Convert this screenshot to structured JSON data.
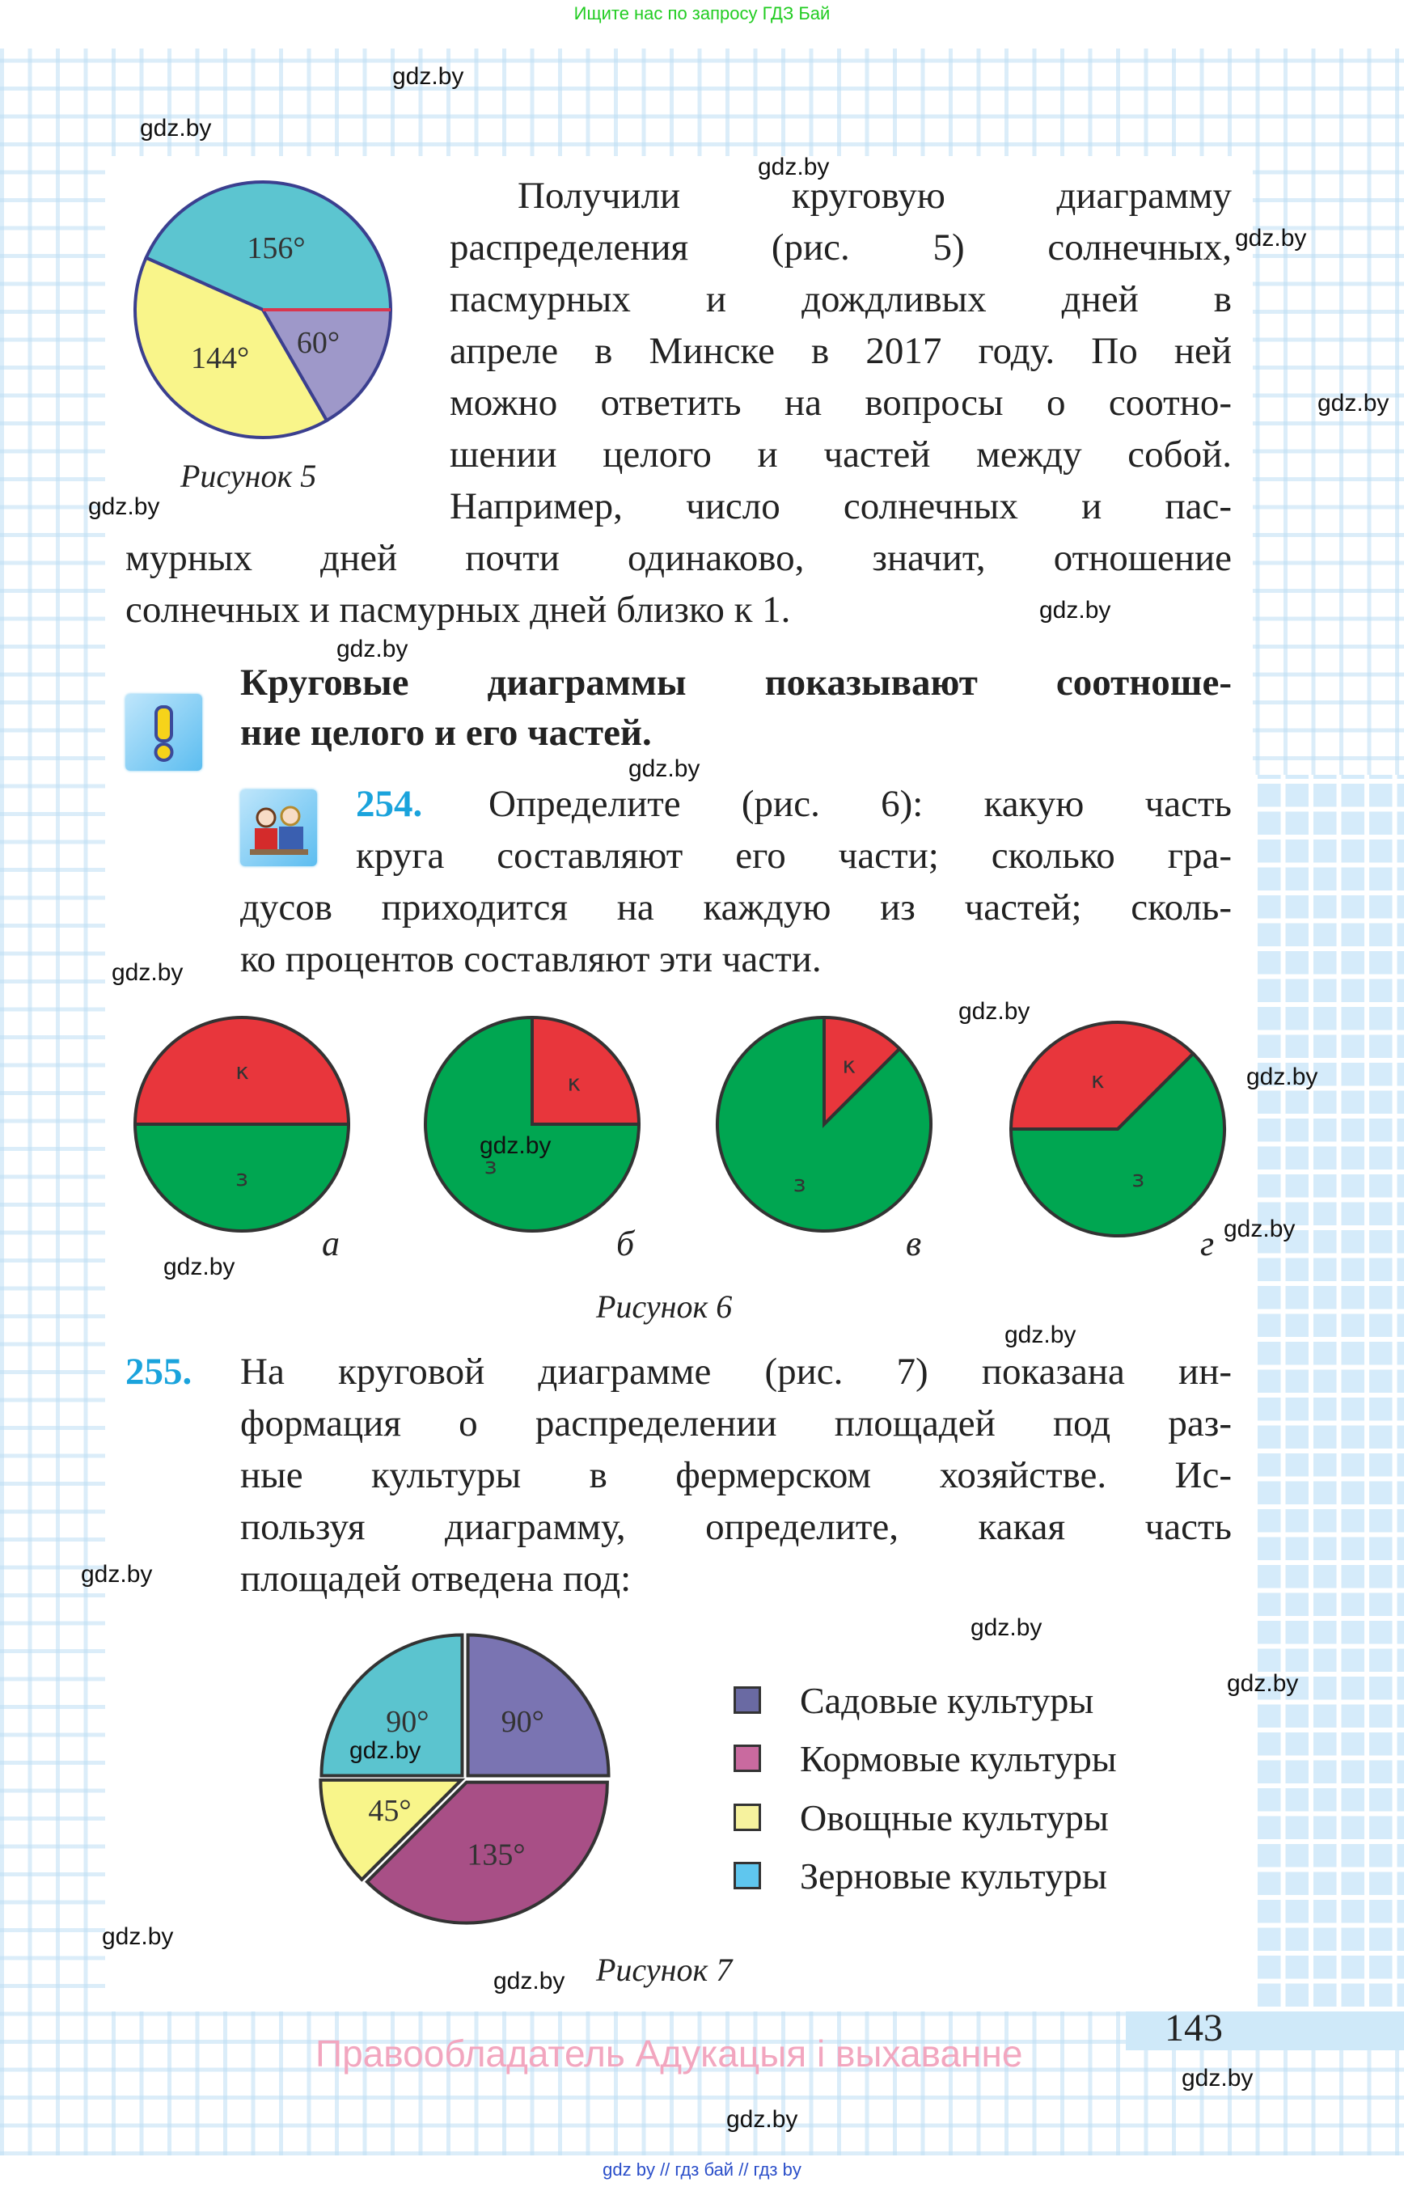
{
  "top_banner": "Ищите нас по запросу ГДЗ Бай",
  "watermark": "gdz.by",
  "intro": {
    "lines": [
      "Получили круговую диаграмму",
      "распределения (рис. 5) солнечных,",
      "пасмурных и дождливых дней в",
      "апреле в Минске в 2017 году. По ней",
      "можно ответить на вопросы о соотно-",
      "шении целого и частей между собой.",
      "Например, число солнечных и пас-",
      "мурных дней почти одинаково, значит, отношение",
      "солнечных и пасмурных дней близко к 1."
    ],
    "figure_caption": "Рисунок 5"
  },
  "rule": {
    "icon": "exclamation-icon",
    "lines": [
      "Круговые диаграммы показывают соотноше-",
      "ние целого и его частей."
    ]
  },
  "task254": {
    "number": "254.",
    "icon": "students-pair-icon",
    "lines": [
      "Определите (рис. 6): какую часть",
      "круга составляют его части; сколько гра-",
      "дусов приходится на каждую из частей; сколь-",
      "ко процентов составляют эти части."
    ],
    "sublabels": [
      "а",
      "б",
      "в",
      "г"
    ],
    "figure_caption": "Рисунок 6"
  },
  "task255": {
    "number": "255.",
    "lines": [
      "На круговой диаграмме (рис. 7) показана ин-",
      "формация о распределении площадей под раз-",
      "ные культуры в фермерском хозяйстве. Ис-",
      "пользуя диаграмму, определите, какая часть",
      "площадей отведена под:"
    ],
    "figure_caption": "Рисунок 7",
    "legend": [
      {
        "label": "Садовые культуры",
        "color": "#6a6aa3"
      },
      {
        "label": "Кормовые культуры",
        "color": "#c96a9f"
      },
      {
        "label": "Овощные культуры",
        "color": "#f6f29e"
      },
      {
        "label": "Зерновые культуры",
        "color": "#5fc6ee"
      }
    ]
  },
  "footer": {
    "page_number": "143",
    "rights": "Правообладатель Адукацыя і выхаванне",
    "links": "gdz by  //  гдз бай  //  гдз by"
  },
  "chart_data": [
    {
      "type": "pie",
      "id": "fig5",
      "slices": [
        {
          "label": "156°",
          "value": 156,
          "color": "#5cc5d0"
        },
        {
          "label": "144°",
          "value": 144,
          "color": "#f9f58a"
        },
        {
          "label": "60°",
          "value": 60,
          "color": "#9e98c9"
        }
      ]
    },
    {
      "type": "pie",
      "id": "fig6a",
      "slices": [
        {
          "label": "к",
          "value": 180,
          "color": "#e8363c"
        },
        {
          "label": "з",
          "value": 180,
          "color": "#00a651"
        }
      ]
    },
    {
      "type": "pie",
      "id": "fig6b",
      "slices": [
        {
          "label": "к",
          "value": 90,
          "color": "#e8363c"
        },
        {
          "label": "з",
          "value": 270,
          "color": "#00a651"
        }
      ]
    },
    {
      "type": "pie",
      "id": "fig6c",
      "slices": [
        {
          "label": "к",
          "value": 45,
          "color": "#e8363c"
        },
        {
          "label": "з",
          "value": 315,
          "color": "#00a651"
        }
      ]
    },
    {
      "type": "pie",
      "id": "fig6d",
      "slices": [
        {
          "label": "к",
          "value": 135,
          "color": "#e8363c"
        },
        {
          "label": "з",
          "value": 225,
          "color": "#00a651"
        }
      ]
    },
    {
      "type": "pie",
      "id": "fig7",
      "slices": [
        {
          "label": "90°",
          "value": 90,
          "color": "#7a74b2"
        },
        {
          "label": "90°",
          "value": 90,
          "color": "#5bc4cf"
        },
        {
          "label": "45°",
          "value": 45,
          "color": "#f8f58a"
        },
        {
          "label": "135°",
          "value": 135,
          "color": "#a84f86"
        }
      ]
    }
  ]
}
